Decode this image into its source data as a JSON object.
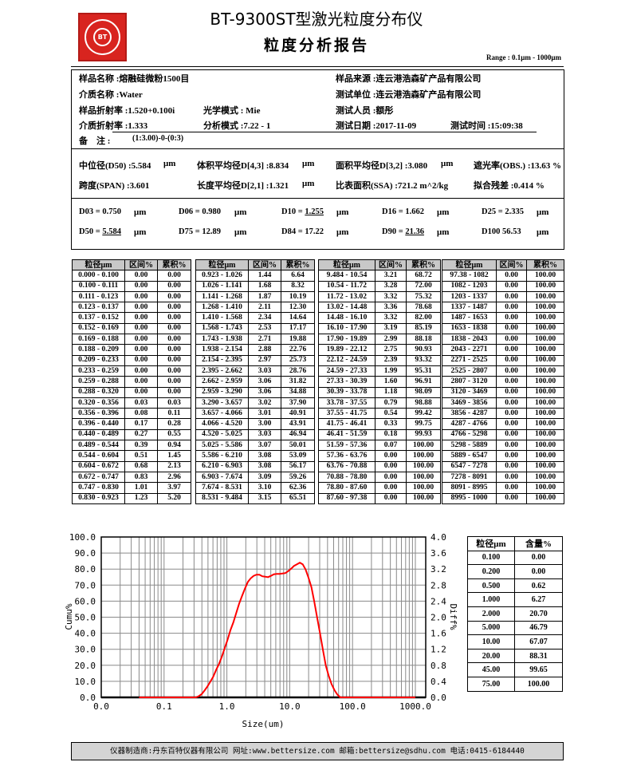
{
  "header": {
    "title": "BT-9300ST型激光粒度分布仪",
    "subtitle": "粒度分析报告",
    "range": "Range : 0.1μm - 1000μm",
    "logo_text": "BETTER BT 百特",
    "logo_color": "#d8241f"
  },
  "sample_info": {
    "sample_name": "样品名称 :熔融硅微粉1500目",
    "sample_source": "样品来源 :连云港浩森矿产品有限公司",
    "medium_name": "介质名称 :Water",
    "test_unit": "测试单位 :连云港浩森矿产品有限公司",
    "sample_ri": "样品折射率 :1.520+0.100i",
    "optical_model": "光学模式 : Mie",
    "operator": "测试人员 :额彤",
    "medium_ri": "介质折射率 :1.333",
    "analysis_mode": "分析模式 :7.22 - 1",
    "test_date": "测试日期 :2017-11-09",
    "test_time": "测试时间 :15:09:38",
    "remark_label": "备　注 :",
    "remark_value": "(1:3.00)-0-(0:3)"
  },
  "results": {
    "d50": "中位径(D50) :5.584",
    "d43": "体积平均径D[4,3] :8.834",
    "d32": "面积平均径D[3,2] :3.080",
    "obs": "遮光率(OBS.) :13.63 %",
    "span": "跨度(SPAN) :3.601",
    "d21": "长度平均径D[2,1] :1.321",
    "ssa": "比表面积(SSA) :721.2  m^2/kg",
    "residual": "拟合残差 :0.414  %",
    "unit": "μm"
  },
  "percentiles": [
    {
      "label": "D03 = ",
      "value": "0.750",
      "underline": false
    },
    {
      "label": "D06 = ",
      "value": "0.980",
      "underline": false
    },
    {
      "label": "D10 = ",
      "value": "1.255",
      "underline": true
    },
    {
      "label": "D16 = ",
      "value": "1.662",
      "underline": false
    },
    {
      "label": "D25 = ",
      "value": "2.335",
      "underline": false
    },
    {
      "label": "D50 = ",
      "value": "5.584",
      "underline": true
    },
    {
      "label": "D75 = ",
      "value": "12.89",
      "underline": false
    },
    {
      "label": "D84 = ",
      "value": "17.22",
      "underline": false
    },
    {
      "label": "D90 = ",
      "value": "21.36",
      "underline": true
    },
    {
      "label": "D100  ",
      "value": "56.53",
      "underline": false
    }
  ],
  "size_tables": {
    "headers": [
      "粒径μm",
      "区间%",
      "累积%"
    ],
    "tables": [
      [
        [
          "0.000 - 0.100",
          "0.00",
          "0.00"
        ],
        [
          "0.100 - 0.111",
          "0.00",
          "0.00"
        ],
        [
          "0.111 - 0.123",
          "0.00",
          "0.00"
        ],
        [
          "0.123 - 0.137",
          "0.00",
          "0.00"
        ],
        [
          "0.137 - 0.152",
          "0.00",
          "0.00"
        ],
        [
          "0.152 - 0.169",
          "0.00",
          "0.00"
        ],
        [
          "0.169 - 0.188",
          "0.00",
          "0.00"
        ],
        [
          "0.188 - 0.209",
          "0.00",
          "0.00"
        ],
        [
          "0.209 - 0.233",
          "0.00",
          "0.00"
        ],
        [
          "0.233 - 0.259",
          "0.00",
          "0.00"
        ],
        [
          "0.259 - 0.288",
          "0.00",
          "0.00"
        ],
        [
          "0.288 - 0.320",
          "0.00",
          "0.00"
        ],
        [
          "0.320 - 0.356",
          "0.03",
          "0.03"
        ],
        [
          "0.356 - 0.396",
          "0.08",
          "0.11"
        ],
        [
          "0.396 - 0.440",
          "0.17",
          "0.28"
        ],
        [
          "0.440 - 0.489",
          "0.27",
          "0.55"
        ],
        [
          "0.489 - 0.544",
          "0.39",
          "0.94"
        ],
        [
          "0.544 - 0.604",
          "0.51",
          "1.45"
        ],
        [
          "0.604 - 0.672",
          "0.68",
          "2.13"
        ],
        [
          "0.672 - 0.747",
          "0.83",
          "2.96"
        ],
        [
          "0.747 - 0.830",
          "1.01",
          "3.97"
        ],
        [
          "0.830 - 0.923",
          "1.23",
          "5.20"
        ]
      ],
      [
        [
          "0.923 - 1.026",
          "1.44",
          "6.64"
        ],
        [
          "1.026 - 1.141",
          "1.68",
          "8.32"
        ],
        [
          "1.141 - 1.268",
          "1.87",
          "10.19"
        ],
        [
          "1.268 - 1.410",
          "2.11",
          "12.30"
        ],
        [
          "1.410 - 1.568",
          "2.34",
          "14.64"
        ],
        [
          "1.568 - 1.743",
          "2.53",
          "17.17"
        ],
        [
          "1.743 - 1.938",
          "2.71",
          "19.88"
        ],
        [
          "1.938 - 2.154",
          "2.88",
          "22.76"
        ],
        [
          "2.154 - 2.395",
          "2.97",
          "25.73"
        ],
        [
          "2.395 - 2.662",
          "3.03",
          "28.76"
        ],
        [
          "2.662 - 2.959",
          "3.06",
          "31.82"
        ],
        [
          "2.959 - 3.290",
          "3.06",
          "34.88"
        ],
        [
          "3.290 - 3.657",
          "3.02",
          "37.90"
        ],
        [
          "3.657 - 4.066",
          "3.01",
          "40.91"
        ],
        [
          "4.066 - 4.520",
          "3.00",
          "43.91"
        ],
        [
          "4.520 - 5.025",
          "3.03",
          "46.94"
        ],
        [
          "5.025 - 5.586",
          "3.07",
          "50.01"
        ],
        [
          "5.586 - 6.210",
          "3.08",
          "53.09"
        ],
        [
          "6.210 - 6.903",
          "3.08",
          "56.17"
        ],
        [
          "6.903 - 7.674",
          "3.09",
          "59.26"
        ],
        [
          "7.674 - 8.531",
          "3.10",
          "62.36"
        ],
        [
          "8.531 - 9.484",
          "3.15",
          "65.51"
        ]
      ],
      [
        [
          "9.484 - 10.54",
          "3.21",
          "68.72"
        ],
        [
          "10.54 - 11.72",
          "3.28",
          "72.00"
        ],
        [
          "11.72 - 13.02",
          "3.32",
          "75.32"
        ],
        [
          "13.02 - 14.48",
          "3.36",
          "78.68"
        ],
        [
          "14.48 - 16.10",
          "3.32",
          "82.00"
        ],
        [
          "16.10 - 17.90",
          "3.19",
          "85.19"
        ],
        [
          "17.90 - 19.89",
          "2.99",
          "88.18"
        ],
        [
          "19.89 - 22.12",
          "2.75",
          "90.93"
        ],
        [
          "22.12 - 24.59",
          "2.39",
          "93.32"
        ],
        [
          "24.59 - 27.33",
          "1.99",
          "95.31"
        ],
        [
          "27.33 - 30.39",
          "1.60",
          "96.91"
        ],
        [
          "30.39 - 33.78",
          "1.18",
          "98.09"
        ],
        [
          "33.78 - 37.55",
          "0.79",
          "98.88"
        ],
        [
          "37.55 - 41.75",
          "0.54",
          "99.42"
        ],
        [
          "41.75 - 46.41",
          "0.33",
          "99.75"
        ],
        [
          "46.41 - 51.59",
          "0.18",
          "99.93"
        ],
        [
          "51.59 - 57.36",
          "0.07",
          "100.00"
        ],
        [
          "57.36 - 63.76",
          "0.00",
          "100.00"
        ],
        [
          "63.76 - 70.88",
          "0.00",
          "100.00"
        ],
        [
          "70.88 - 78.80",
          "0.00",
          "100.00"
        ],
        [
          "78.80 - 87.60",
          "0.00",
          "100.00"
        ],
        [
          "87.60 - 97.38",
          "0.00",
          "100.00"
        ]
      ],
      [
        [
          "97.38 - 1082",
          "0.00",
          "100.00"
        ],
        [
          "1082 - 1203",
          "0.00",
          "100.00"
        ],
        [
          "1203 - 1337",
          "0.00",
          "100.00"
        ],
        [
          "1337 - 1487",
          "0.00",
          "100.00"
        ],
        [
          "1487 - 1653",
          "0.00",
          "100.00"
        ],
        [
          "1653 - 1838",
          "0.00",
          "100.00"
        ],
        [
          "1838 - 2043",
          "0.00",
          "100.00"
        ],
        [
          "2043 - 2271",
          "0.00",
          "100.00"
        ],
        [
          "2271 - 2525",
          "0.00",
          "100.00"
        ],
        [
          "2525 - 2807",
          "0.00",
          "100.00"
        ],
        [
          "2807 - 3120",
          "0.00",
          "100.00"
        ],
        [
          "3120 - 3469",
          "0.00",
          "100.00"
        ],
        [
          "3469 - 3856",
          "0.00",
          "100.00"
        ],
        [
          "3856 - 4287",
          "0.00",
          "100.00"
        ],
        [
          "4287 - 4766",
          "0.00",
          "100.00"
        ],
        [
          "4766 - 5298",
          "0.00",
          "100.00"
        ],
        [
          "5298 - 5889",
          "0.00",
          "100.00"
        ],
        [
          "5889 - 6547",
          "0.00",
          "100.00"
        ],
        [
          "6547 - 7278",
          "0.00",
          "100.00"
        ],
        [
          "7278 - 8091",
          "0.00",
          "100.00"
        ],
        [
          "8091 - 8995",
          "0.00",
          "100.00"
        ],
        [
          "8995 - 1000",
          "0.00",
          "100.00"
        ]
      ]
    ]
  },
  "content_table": {
    "headers": [
      "粒径μm",
      "含量%"
    ],
    "rows": [
      [
        "0.100",
        "0.00"
      ],
      [
        "0.200",
        "0.00"
      ],
      [
        "0.500",
        "0.62"
      ],
      [
        "1.000",
        "6.27"
      ],
      [
        "2.000",
        "20.70"
      ],
      [
        "5.000",
        "46.79"
      ],
      [
        "10.00",
        "67.07"
      ],
      [
        "20.00",
        "88.31"
      ],
      [
        "45.00",
        "99.65"
      ],
      [
        "75.00",
        "100.00"
      ]
    ]
  },
  "chart_data": {
    "type": "line",
    "xlabel": "Size(um)",
    "ylabel": "Cumu%",
    "ylabel_right": "Diff%",
    "x_scale": "log",
    "xlim": [
      0.01,
      1000
    ],
    "x_ticks": [
      "0.0",
      "0.1",
      "1.0",
      "10.0",
      "100.0",
      "1000.0"
    ],
    "ylim": [
      0,
      100
    ],
    "y_ticks": [
      "100.0",
      "90.0",
      "80.0",
      "70.0",
      "60.0",
      "50.0",
      "40.0",
      "30.0",
      "20.0",
      "10.0",
      "0.0"
    ],
    "ylim_right": [
      0,
      4
    ],
    "y_ticks_right": [
      "4.0",
      "3.6",
      "3.2",
      "2.8",
      "2.4",
      "2.0",
      "1.6",
      "1.2",
      "0.8",
      "0.4",
      "0.0"
    ],
    "grid": true,
    "series_source": "size_tables interval % (区间%) vs. bin size, plotted on right axis",
    "line_color": "#ff0000"
  },
  "footer": {
    "text": "仪器制造商:丹东百特仪器有限公司   网址:www.bettersize.com  邮箱:bettersize@sdhu.com  电话:0415-6184440"
  }
}
